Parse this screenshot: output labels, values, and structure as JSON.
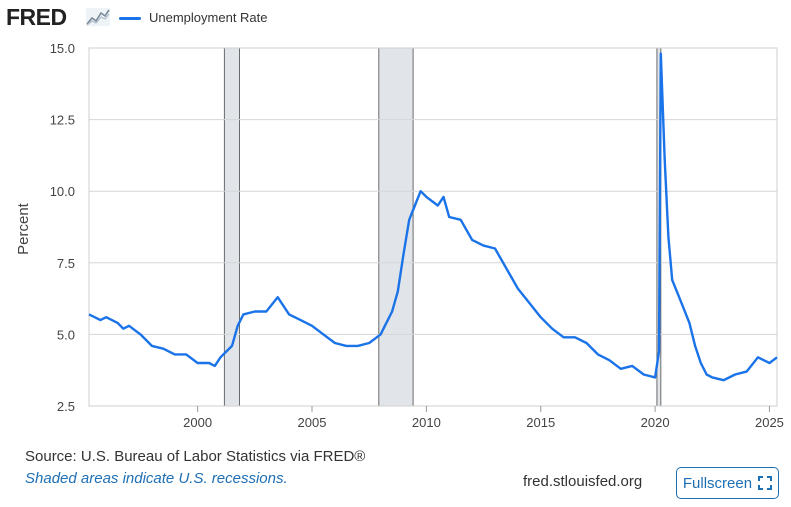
{
  "header": {
    "logo_text": "FRED",
    "logo_icon": "fred-graph-icon",
    "legend_label": "Unemployment Rate",
    "legend_color": "#1a73e8"
  },
  "footer": {
    "source": "Source: U.S. Bureau of Labor Statistics via FRED®",
    "note": "Shaded areas indicate U.S. recessions.",
    "site": "fred.stlouisfed.org",
    "fullscreen_label": "Fullscreen",
    "fullscreen_icon": "expand-icon"
  },
  "chart_data": {
    "type": "line",
    "ylabel": "Percent",
    "xlabel": "",
    "xlim": [
      1995.25,
      2025.33
    ],
    "ylim": [
      2.5,
      15.0
    ],
    "x_ticks": [
      2000,
      2005,
      2010,
      2015,
      2020,
      2025
    ],
    "y_ticks": [
      "2.5",
      "5.0",
      "7.5",
      "10.0",
      "12.5",
      "15.0"
    ],
    "grid": true,
    "recessions": [
      [
        2001.17,
        2001.83
      ],
      [
        2007.92,
        2009.42
      ],
      [
        2020.08,
        2020.25
      ]
    ],
    "series": [
      {
        "name": "Unemployment Rate",
        "color": "#1a73e8",
        "points": [
          [
            1995.25,
            5.7
          ],
          [
            1995.5,
            5.6
          ],
          [
            1995.75,
            5.5
          ],
          [
            1996.0,
            5.6
          ],
          [
            1996.5,
            5.4
          ],
          [
            1996.75,
            5.2
          ],
          [
            1997.0,
            5.3
          ],
          [
            1997.5,
            5.0
          ],
          [
            1997.75,
            4.8
          ],
          [
            1998.0,
            4.6
          ],
          [
            1998.5,
            4.5
          ],
          [
            1999.0,
            4.3
          ],
          [
            1999.5,
            4.3
          ],
          [
            2000.0,
            4.0
          ],
          [
            2000.5,
            4.0
          ],
          [
            2000.75,
            3.9
          ],
          [
            2001.0,
            4.2
          ],
          [
            2001.25,
            4.4
          ],
          [
            2001.5,
            4.6
          ],
          [
            2001.75,
            5.3
          ],
          [
            2002.0,
            5.7
          ],
          [
            2002.5,
            5.8
          ],
          [
            2003.0,
            5.8
          ],
          [
            2003.5,
            6.3
          ],
          [
            2004.0,
            5.7
          ],
          [
            2004.5,
            5.5
          ],
          [
            2005.0,
            5.3
          ],
          [
            2005.5,
            5.0
          ],
          [
            2006.0,
            4.7
          ],
          [
            2006.5,
            4.6
          ],
          [
            2007.0,
            4.6
          ],
          [
            2007.5,
            4.7
          ],
          [
            2008.0,
            5.0
          ],
          [
            2008.5,
            5.8
          ],
          [
            2008.75,
            6.5
          ],
          [
            2009.0,
            7.8
          ],
          [
            2009.25,
            9.0
          ],
          [
            2009.5,
            9.5
          ],
          [
            2009.75,
            10.0
          ],
          [
            2010.0,
            9.8
          ],
          [
            2010.5,
            9.5
          ],
          [
            2010.75,
            9.8
          ],
          [
            2011.0,
            9.1
          ],
          [
            2011.5,
            9.0
          ],
          [
            2012.0,
            8.3
          ],
          [
            2012.5,
            8.1
          ],
          [
            2013.0,
            8.0
          ],
          [
            2013.5,
            7.3
          ],
          [
            2014.0,
            6.6
          ],
          [
            2014.5,
            6.1
          ],
          [
            2015.0,
            5.6
          ],
          [
            2015.5,
            5.2
          ],
          [
            2016.0,
            4.9
          ],
          [
            2016.5,
            4.9
          ],
          [
            2017.0,
            4.7
          ],
          [
            2017.5,
            4.3
          ],
          [
            2018.0,
            4.1
          ],
          [
            2018.5,
            3.8
          ],
          [
            2019.0,
            3.9
          ],
          [
            2019.5,
            3.6
          ],
          [
            2020.0,
            3.5
          ],
          [
            2020.17,
            4.4
          ],
          [
            2020.25,
            14.8
          ],
          [
            2020.42,
            11.1
          ],
          [
            2020.58,
            8.4
          ],
          [
            2020.75,
            6.9
          ],
          [
            2021.0,
            6.4
          ],
          [
            2021.25,
            5.9
          ],
          [
            2021.5,
            5.4
          ],
          [
            2021.75,
            4.6
          ],
          [
            2022.0,
            4.0
          ],
          [
            2022.25,
            3.6
          ],
          [
            2022.5,
            3.5
          ],
          [
            2023.0,
            3.4
          ],
          [
            2023.5,
            3.6
          ],
          [
            2024.0,
            3.7
          ],
          [
            2024.5,
            4.2
          ],
          [
            2024.75,
            4.1
          ],
          [
            2025.0,
            4.0
          ],
          [
            2025.33,
            4.2
          ]
        ]
      }
    ]
  }
}
